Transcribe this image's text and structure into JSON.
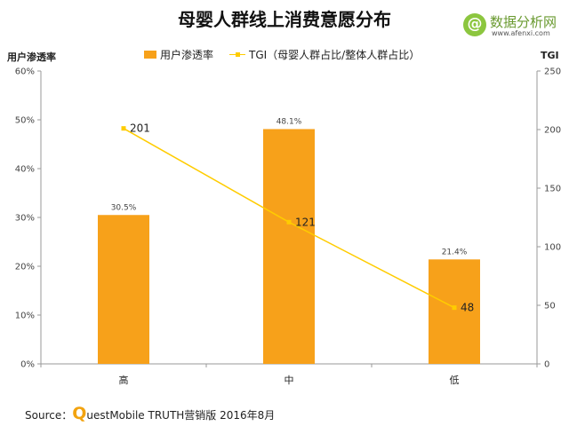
{
  "title": "母婴人群线上消费意愿分布",
  "logo": {
    "mark": "@",
    "name": "数据分析网",
    "url": "www.afenxi.com"
  },
  "source": {
    "prefix": "Source：",
    "q": "Q",
    "rest": "uestMobile TRUTH营销版 2016年8月"
  },
  "colors": {
    "bar": "#f7a11a",
    "line": "#ffcc00",
    "axis": "#9a9a9a"
  },
  "chart_data": {
    "type": "bar",
    "categories": [
      "高",
      "中",
      "低"
    ],
    "series": [
      {
        "name": "用户渗透率",
        "type": "bar",
        "axis": "left",
        "values": [
          30.5,
          48.1,
          21.4
        ],
        "labels": [
          "30.5%",
          "48.1%",
          "21.4%"
        ]
      },
      {
        "name": "TGI（母婴人群占比/整体人群占比）",
        "type": "line",
        "axis": "right",
        "values": [
          201,
          121,
          48
        ],
        "labels": [
          "201",
          "121",
          "48"
        ]
      }
    ],
    "ylabel": "用户渗透率",
    "y2label": "TGI",
    "ylim": [
      0,
      60
    ],
    "y2lim": [
      0,
      250
    ],
    "yticks": [
      "0%",
      "10%",
      "20%",
      "30%",
      "40%",
      "50%",
      "60%"
    ],
    "y2ticks": [
      "0",
      "50",
      "100",
      "150",
      "200",
      "250"
    ],
    "grid": false,
    "legend": "top-center"
  }
}
